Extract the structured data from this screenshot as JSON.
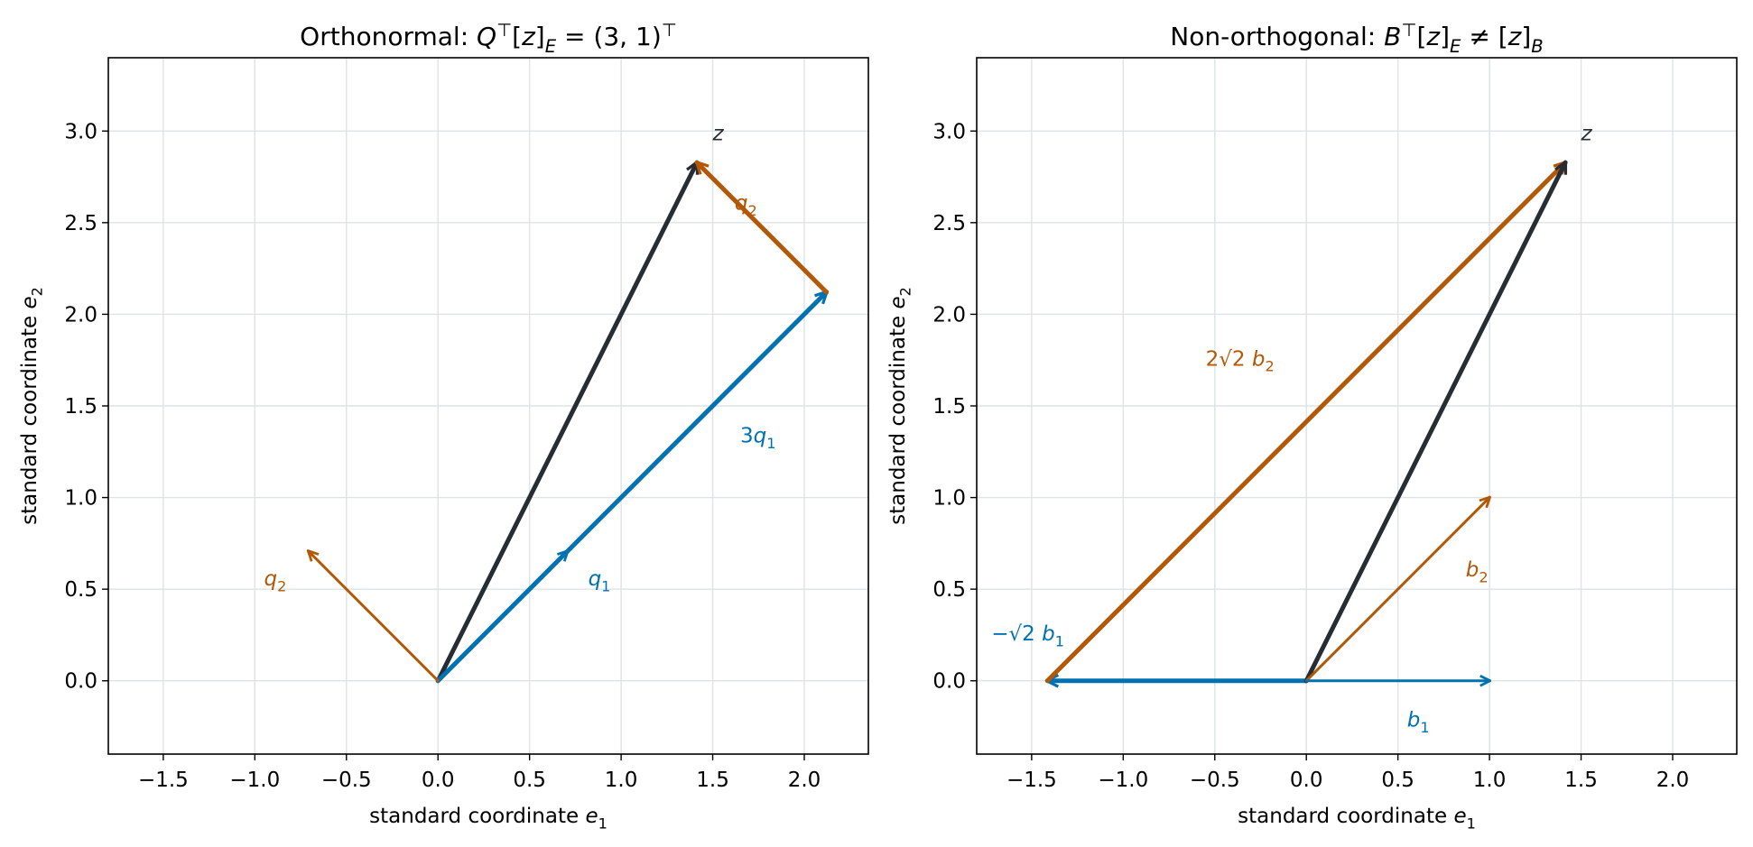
{
  "colors": {
    "blue": "#0072b2",
    "orange": "#b35806",
    "dark": "#262d33",
    "grid": "#dde3e6",
    "axis": "#000000"
  },
  "chart_data": [
    {
      "type": "vector_plot",
      "title": "Orthonormal: Q⊤[z]_E = (3, 1)⊤",
      "xlabel": "standard coordinate e_1",
      "ylabel": "standard coordinate e_2",
      "xlim": [
        -1.8,
        2.35
      ],
      "ylim": [
        -0.4,
        3.4
      ],
      "xticks": [
        -1.5,
        -1.0,
        -0.5,
        0.0,
        0.5,
        1.0,
        1.5,
        2.0
      ],
      "xtick_labels": [
        "−1.5",
        "−1.0",
        "−0.5",
        "0.0",
        "0.5",
        "1.0",
        "1.5",
        "2.0"
      ],
      "yticks": [
        0.0,
        0.5,
        1.0,
        1.5,
        2.0,
        2.5,
        3.0
      ],
      "ytick_labels": [
        "0.0",
        "0.5",
        "1.0",
        "1.5",
        "2.0",
        "2.5",
        "3.0"
      ],
      "grid": true,
      "vectors": [
        {
          "from": [
            0,
            0
          ],
          "to": [
            1.414,
            2.828
          ],
          "color": "dark",
          "weight": "thick"
        },
        {
          "from": [
            0,
            0
          ],
          "to": [
            2.121,
            2.121
          ],
          "color": "blue",
          "weight": "thick"
        },
        {
          "from": [
            2.121,
            2.121
          ],
          "to": [
            1.414,
            2.828
          ],
          "color": "orange",
          "weight": "thick"
        },
        {
          "from": [
            0,
            0
          ],
          "to": [
            0.707,
            0.707
          ],
          "color": "blue",
          "weight": "thin"
        },
        {
          "from": [
            0,
            0
          ],
          "to": [
            -0.707,
            0.707
          ],
          "color": "orange",
          "weight": "thin"
        }
      ],
      "labels": [
        {
          "text": "z",
          "at": [
            1.5,
            2.95
          ],
          "color": "dark",
          "style": "italic"
        },
        {
          "text": "q_2",
          "at": [
            1.62,
            2.57
          ],
          "color": "orange",
          "style": "math"
        },
        {
          "text": "3q_1",
          "at": [
            1.65,
            1.3
          ],
          "color": "blue",
          "style": "math"
        },
        {
          "text": "q_1",
          "at": [
            0.82,
            0.52
          ],
          "color": "blue",
          "style": "math"
        },
        {
          "text": "q_2",
          "at": [
            -0.95,
            0.52
          ],
          "color": "orange",
          "style": "math"
        }
      ]
    },
    {
      "type": "vector_plot",
      "title": "Non-orthogonal: B⊤[z]_E ≠ [z]_B",
      "xlabel": "standard coordinate e_1",
      "ylabel": "standard coordinate e_2",
      "xlim": [
        -1.8,
        2.35
      ],
      "ylim": [
        -0.4,
        3.4
      ],
      "xticks": [
        -1.5,
        -1.0,
        -0.5,
        0.0,
        0.5,
        1.0,
        1.5,
        2.0
      ],
      "xtick_labels": [
        "−1.5",
        "−1.0",
        "−0.5",
        "0.0",
        "0.5",
        "1.0",
        "1.5",
        "2.0"
      ],
      "yticks": [
        0.0,
        0.5,
        1.0,
        1.5,
        2.0,
        2.5,
        3.0
      ],
      "ytick_labels": [
        "0.0",
        "0.5",
        "1.0",
        "1.5",
        "2.0",
        "2.5",
        "3.0"
      ],
      "grid": true,
      "vectors": [
        {
          "from": [
            0,
            0
          ],
          "to": [
            -1.414,
            0
          ],
          "color": "blue",
          "weight": "thick"
        },
        {
          "from": [
            -1.414,
            0
          ],
          "to": [
            1.414,
            2.828
          ],
          "color": "orange",
          "weight": "thick"
        },
        {
          "from": [
            0,
            0
          ],
          "to": [
            1.414,
            2.828
          ],
          "color": "dark",
          "weight": "thick"
        },
        {
          "from": [
            0,
            0
          ],
          "to": [
            1,
            1
          ],
          "color": "orange",
          "weight": "thin"
        },
        {
          "from": [
            0,
            0
          ],
          "to": [
            1,
            0
          ],
          "color": "blue",
          "weight": "thin"
        }
      ],
      "labels": [
        {
          "text": "z",
          "at": [
            1.5,
            2.95
          ],
          "color": "dark",
          "style": "italic"
        },
        {
          "text": "2√2 b_2",
          "at": [
            -0.55,
            1.72
          ],
          "color": "orange",
          "style": "math"
        },
        {
          "text": "b_2",
          "at": [
            0.87,
            0.57
          ],
          "color": "orange",
          "style": "math"
        },
        {
          "text": "−√2 b_1",
          "at": [
            -1.72,
            0.22
          ],
          "color": "blue",
          "style": "math"
        },
        {
          "text": "b_1",
          "at": [
            0.55,
            -0.25
          ],
          "color": "blue",
          "style": "math"
        }
      ]
    }
  ]
}
